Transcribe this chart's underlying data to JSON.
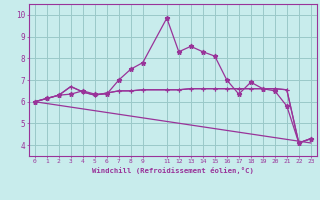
{
  "xlabel": "Windchill (Refroidissement éolien,°C)",
  "bg_color": "#c8ecec",
  "grid_color": "#9ac8c8",
  "line_color": "#993399",
  "xlim": [
    -0.5,
    23.5
  ],
  "ylim": [
    3.5,
    10.5
  ],
  "xticks": [
    0,
    1,
    2,
    3,
    4,
    5,
    6,
    7,
    8,
    9,
    11,
    12,
    13,
    14,
    15,
    16,
    17,
    18,
    19,
    20,
    21,
    22,
    23
  ],
  "yticks": [
    4,
    5,
    6,
    7,
    8,
    9,
    10
  ],
  "line1_x": [
    0,
    1,
    2,
    3,
    4,
    5,
    6,
    7,
    8,
    9,
    11,
    12,
    13,
    14,
    15,
    16,
    17,
    18,
    19,
    20,
    21,
    22,
    23
  ],
  "line1_y": [
    6.0,
    6.15,
    6.3,
    6.35,
    6.5,
    6.35,
    6.35,
    7.0,
    7.5,
    7.8,
    9.85,
    8.3,
    8.55,
    8.3,
    8.1,
    7.0,
    6.35,
    6.9,
    6.6,
    6.5,
    5.8,
    4.1,
    4.3
  ],
  "line2_x": [
    0,
    1,
    2,
    3,
    4,
    5,
    6,
    7,
    8,
    9,
    11,
    12,
    13,
    14,
    15,
    16,
    17,
    18,
    19,
    20,
    21,
    22,
    23
  ],
  "line2_y": [
    6.0,
    6.15,
    6.3,
    6.7,
    6.45,
    6.3,
    6.4,
    6.5,
    6.5,
    6.55,
    6.55,
    6.55,
    6.6,
    6.6,
    6.6,
    6.6,
    6.6,
    6.6,
    6.6,
    6.6,
    6.55,
    4.1,
    4.3
  ],
  "line3_x": [
    0,
    23
  ],
  "line3_y": [
    6.0,
    4.1
  ],
  "line4_x": [
    0,
    1,
    2,
    3,
    4,
    5,
    6,
    7,
    8,
    9,
    11,
    12,
    13,
    14,
    15,
    16,
    17,
    18,
    19,
    20,
    21,
    22,
    23
  ],
  "line4_y": [
    6.0,
    6.15,
    6.3,
    6.7,
    6.45,
    6.3,
    6.4,
    6.5,
    6.5,
    6.55,
    6.55,
    6.55,
    6.6,
    6.6,
    6.6,
    6.6,
    6.6,
    6.6,
    6.6,
    6.6,
    6.55,
    4.1,
    4.3
  ]
}
